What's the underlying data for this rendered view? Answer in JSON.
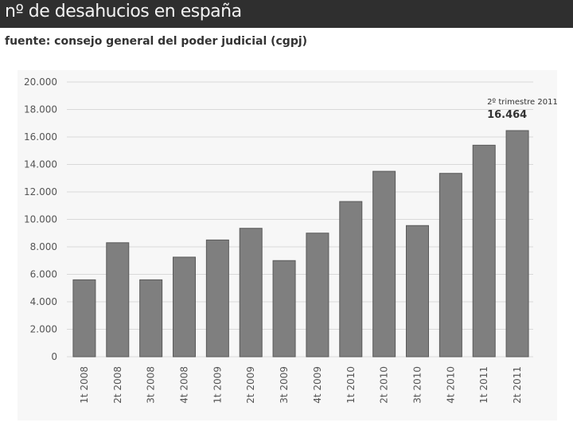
{
  "header": {
    "title": "nº de desahucios en españa"
  },
  "source": {
    "text": "fuente: consejo general del poder judicial (cgpj)"
  },
  "colors": {
    "header_bg": "#2f2f2f",
    "bar": "#7f7f7f",
    "bar_stroke": "#5a5a5a",
    "grid": "#d9d9d9"
  },
  "chart_data": {
    "type": "bar",
    "title": "",
    "xlabel": "",
    "ylabel": "",
    "categories": [
      "1t 2008",
      "2t 2008",
      "3t 2008",
      "4t 2008",
      "1t 2009",
      "2t 2009",
      "3t 2009",
      "4t 2009",
      "1t 2010",
      "2t 2010",
      "3t 2010",
      "4t 2010",
      "1t 2011",
      "2t 2011"
    ],
    "values": [
      5600,
      8300,
      5600,
      7250,
      8500,
      9350,
      7000,
      9000,
      11300,
      13500,
      9550,
      13350,
      15400,
      16464
    ],
    "ylim": [
      0,
      20000
    ],
    "yticks": [
      0,
      2000,
      4000,
      6000,
      8000,
      10000,
      12000,
      14000,
      16000,
      18000,
      20000
    ],
    "ytick_labels": [
      "0",
      "2.000",
      "4.000",
      "6.000",
      "8.000",
      "10.000",
      "12.000",
      "14.000",
      "16.000",
      "18.000",
      "20.000"
    ],
    "grid": true,
    "annotation": {
      "line1": "2º trimestre 2011:",
      "line2": "16.464",
      "category": "2t 2011"
    }
  }
}
